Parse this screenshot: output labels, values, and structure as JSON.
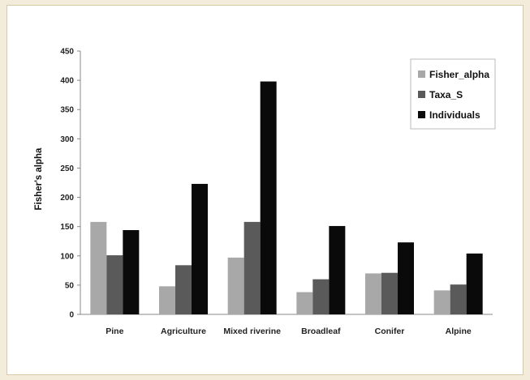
{
  "chart_data": {
    "type": "bar",
    "title": "",
    "xlabel": "",
    "ylabel": "Fisher's alpha",
    "ylim": [
      0,
      450
    ],
    "yticks": [
      0,
      50,
      100,
      150,
      200,
      250,
      300,
      350,
      400,
      450
    ],
    "grid": false,
    "legend_position": "top-right",
    "categories": [
      "Pine",
      "Agriculture",
      "Mixed riverine",
      "Broadleaf",
      "Conifer",
      "Alpine"
    ],
    "series": [
      {
        "name": "Fisher_alpha",
        "color": "#a8a8a8",
        "values": [
          158,
          48,
          97,
          38,
          70,
          41
        ]
      },
      {
        "name": "Taxa_S",
        "color": "#5a5a5a",
        "values": [
          101,
          84,
          158,
          60,
          71,
          51
        ]
      },
      {
        "name": "Individuals",
        "color": "#0a0a0a",
        "values": [
          144,
          223,
          398,
          151,
          123,
          104
        ]
      }
    ]
  }
}
